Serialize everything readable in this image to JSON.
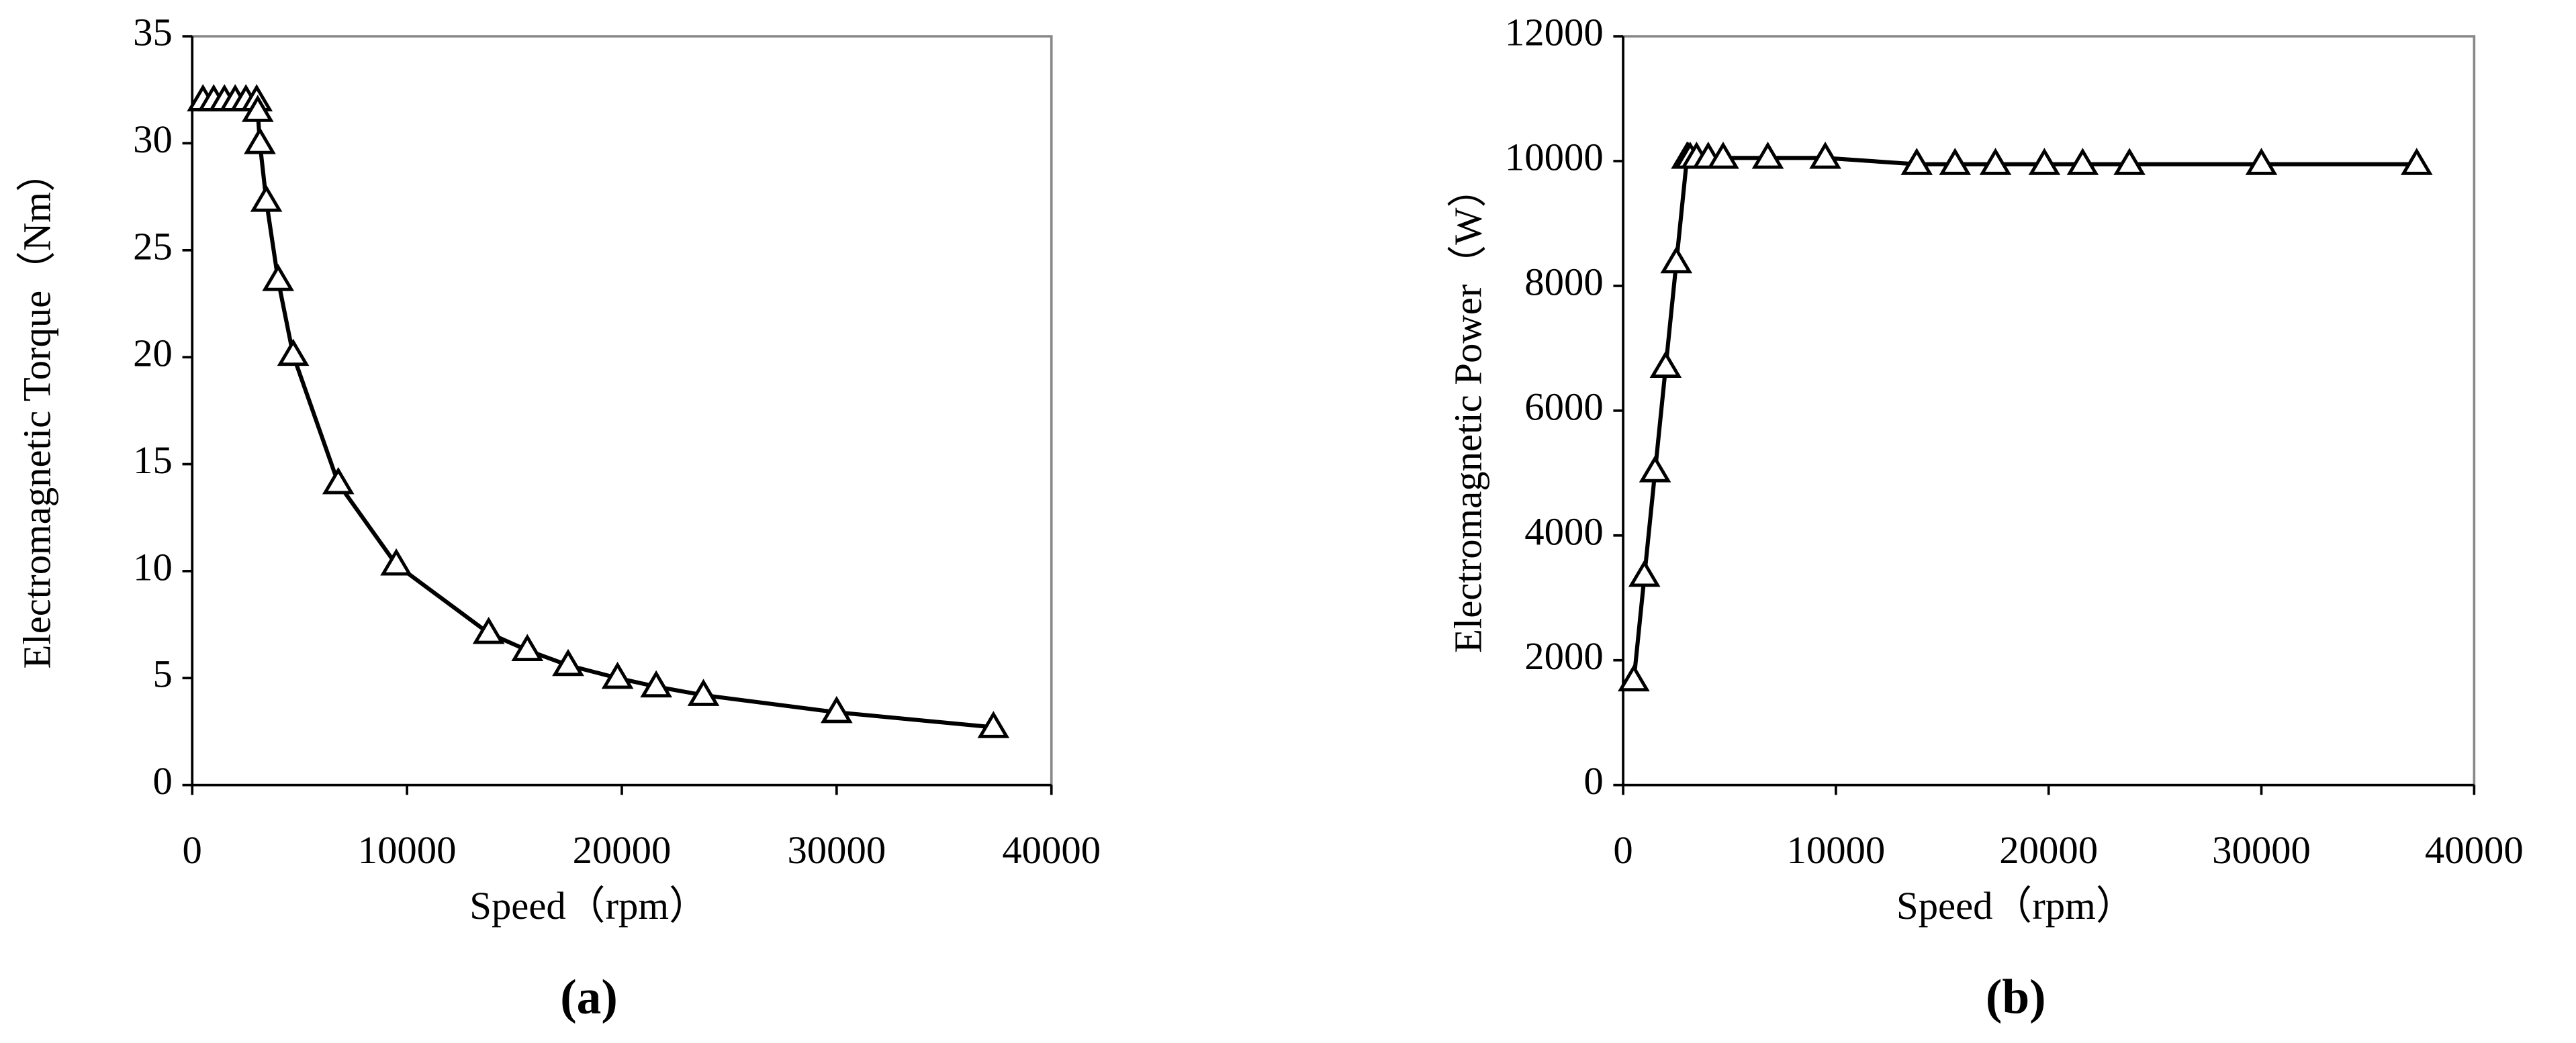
{
  "chart_data": [
    {
      "type": "line",
      "ylabel": "Electromagnetic Torque（Nm）",
      "xlabel": "Speed（rpm）",
      "caption": "(a)",
      "color": "#000000",
      "marker": "triangle",
      "x": [
        500,
        1000,
        1500,
        2000,
        2500,
        3000,
        3050,
        3150,
        3450,
        4000,
        4700,
        6800,
        9500,
        13800,
        15600,
        17500,
        19800,
        21600,
        23800,
        30000,
        37300
      ],
      "values": [
        32,
        32,
        32,
        32,
        32,
        32,
        31.5,
        30,
        27.3,
        23.6,
        20.1,
        14.1,
        10.3,
        7.1,
        6.3,
        5.6,
        5.0,
        4.6,
        4.2,
        3.4,
        2.7
      ],
      "xlim": [
        0,
        40000
      ],
      "xticks": [
        0,
        10000,
        20000,
        30000,
        40000
      ],
      "ylim": [
        0,
        35
      ],
      "yticks": [
        0,
        5,
        10,
        15,
        20,
        25,
        30,
        35
      ]
    },
    {
      "type": "line",
      "ylabel": "Electromagnetic Power（W）",
      "xlabel": "Speed（rpm）",
      "caption": "(b)",
      "color": "#000000",
      "marker": "triangle",
      "x": [
        500,
        1000,
        1500,
        2000,
        2500,
        3000,
        3050,
        3150,
        3450,
        4000,
        4700,
        6800,
        9500,
        13800,
        15600,
        17500,
        19800,
        21600,
        23800,
        30000,
        37300
      ],
      "values": [
        1675,
        3350,
        5025,
        6700,
        8375,
        10050,
        10050,
        10050,
        10050,
        10050,
        10050,
        10050,
        10050,
        9950,
        9950,
        9950,
        9950,
        9950,
        9950,
        9950,
        9950
      ],
      "xlim": [
        0,
        40000
      ],
      "xticks": [
        0,
        10000,
        20000,
        30000,
        40000
      ],
      "ylim": [
        0,
        12000
      ],
      "yticks": [
        0,
        2000,
        4000,
        6000,
        8000,
        10000,
        12000
      ]
    }
  ]
}
